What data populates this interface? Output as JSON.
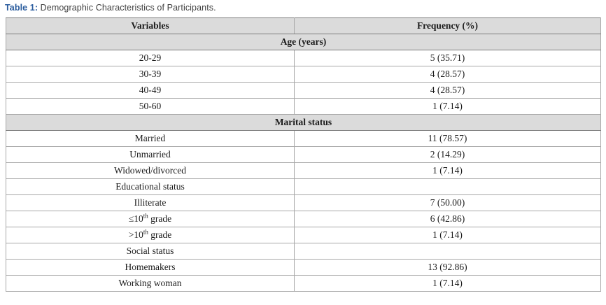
{
  "caption": {
    "label": "Table 1:",
    "text": " Demographic Characteristics of Participants."
  },
  "colors": {
    "caption_label_blue": "#2a5c9e",
    "caption_text": "#404040",
    "section_row_bg": "#dbdbdb",
    "outer_border": "#7d7d7d",
    "inner_border": "#a8a8a8",
    "cell_text": "#1c1c1c",
    "page_bg": "#ffffff"
  },
  "table": {
    "columns": [
      "Variables",
      "Frequency (%)"
    ],
    "rows": [
      {
        "type": "section",
        "label": "Age (years)"
      },
      {
        "type": "data",
        "variable": "20-29",
        "frequency": "5 (35.71)"
      },
      {
        "type": "data",
        "variable": "30-39",
        "frequency": "4 (28.57)"
      },
      {
        "type": "data",
        "variable": "40-49",
        "frequency": "4 (28.57)"
      },
      {
        "type": "data",
        "variable": "50-60",
        "frequency": "1 (7.14)"
      },
      {
        "type": "section",
        "label": "Marital status"
      },
      {
        "type": "data",
        "variable": "Married",
        "frequency": "11 (78.57)"
      },
      {
        "type": "data",
        "variable": "Unmarried",
        "frequency": "2 (14.29)"
      },
      {
        "type": "data",
        "variable": "Widowed/divorced",
        "frequency": "1 (7.14)"
      },
      {
        "type": "data",
        "variable": "Educational status",
        "frequency": ""
      },
      {
        "type": "data",
        "variable": "Illiterate",
        "frequency": "7 (50.00)"
      },
      {
        "type": "data",
        "variable_parts": [
          "≤10",
          {
            "sup": "th"
          },
          " grade"
        ],
        "frequency": "6 (42.86)"
      },
      {
        "type": "data",
        "variable_parts": [
          ">10",
          {
            "sup": "th"
          },
          " grade"
        ],
        "frequency": "1 (7.14)"
      },
      {
        "type": "data",
        "variable": "Social status",
        "frequency": ""
      },
      {
        "type": "data",
        "variable": "Homemakers",
        "frequency": "13 (92.86)"
      },
      {
        "type": "data",
        "variable": "Working woman",
        "frequency": "1 (7.14)"
      }
    ]
  },
  "chart_data": {
    "type": "table",
    "title": "Table 1: Demographic Characteristics of Participants.",
    "columns": [
      "Variables",
      "Frequency (%)"
    ],
    "sections": [
      {
        "name": "Age (years)",
        "rows": [
          [
            "20-29",
            "5 (35.71)"
          ],
          [
            "30-39",
            "4 (28.57)"
          ],
          [
            "40-49",
            "4 (28.57)"
          ],
          [
            "50-60",
            "1 (7.14)"
          ]
        ]
      },
      {
        "name": "Marital status",
        "rows": [
          [
            "Married",
            "11 (78.57)"
          ],
          [
            "Unmarried",
            "2 (14.29)"
          ],
          [
            "Widowed/divorced",
            "1 (7.14)"
          ]
        ]
      },
      {
        "name": "Educational status",
        "rows": [
          [
            "Illiterate",
            "7 (50.00)"
          ],
          [
            "≤10th grade",
            "6 (42.86)"
          ],
          [
            ">10th grade",
            "1 (7.14)"
          ]
        ]
      },
      {
        "name": "Social status",
        "rows": [
          [
            "Homemakers",
            "13 (92.86)"
          ],
          [
            "Working woman",
            "1 (7.14)"
          ]
        ]
      }
    ]
  }
}
